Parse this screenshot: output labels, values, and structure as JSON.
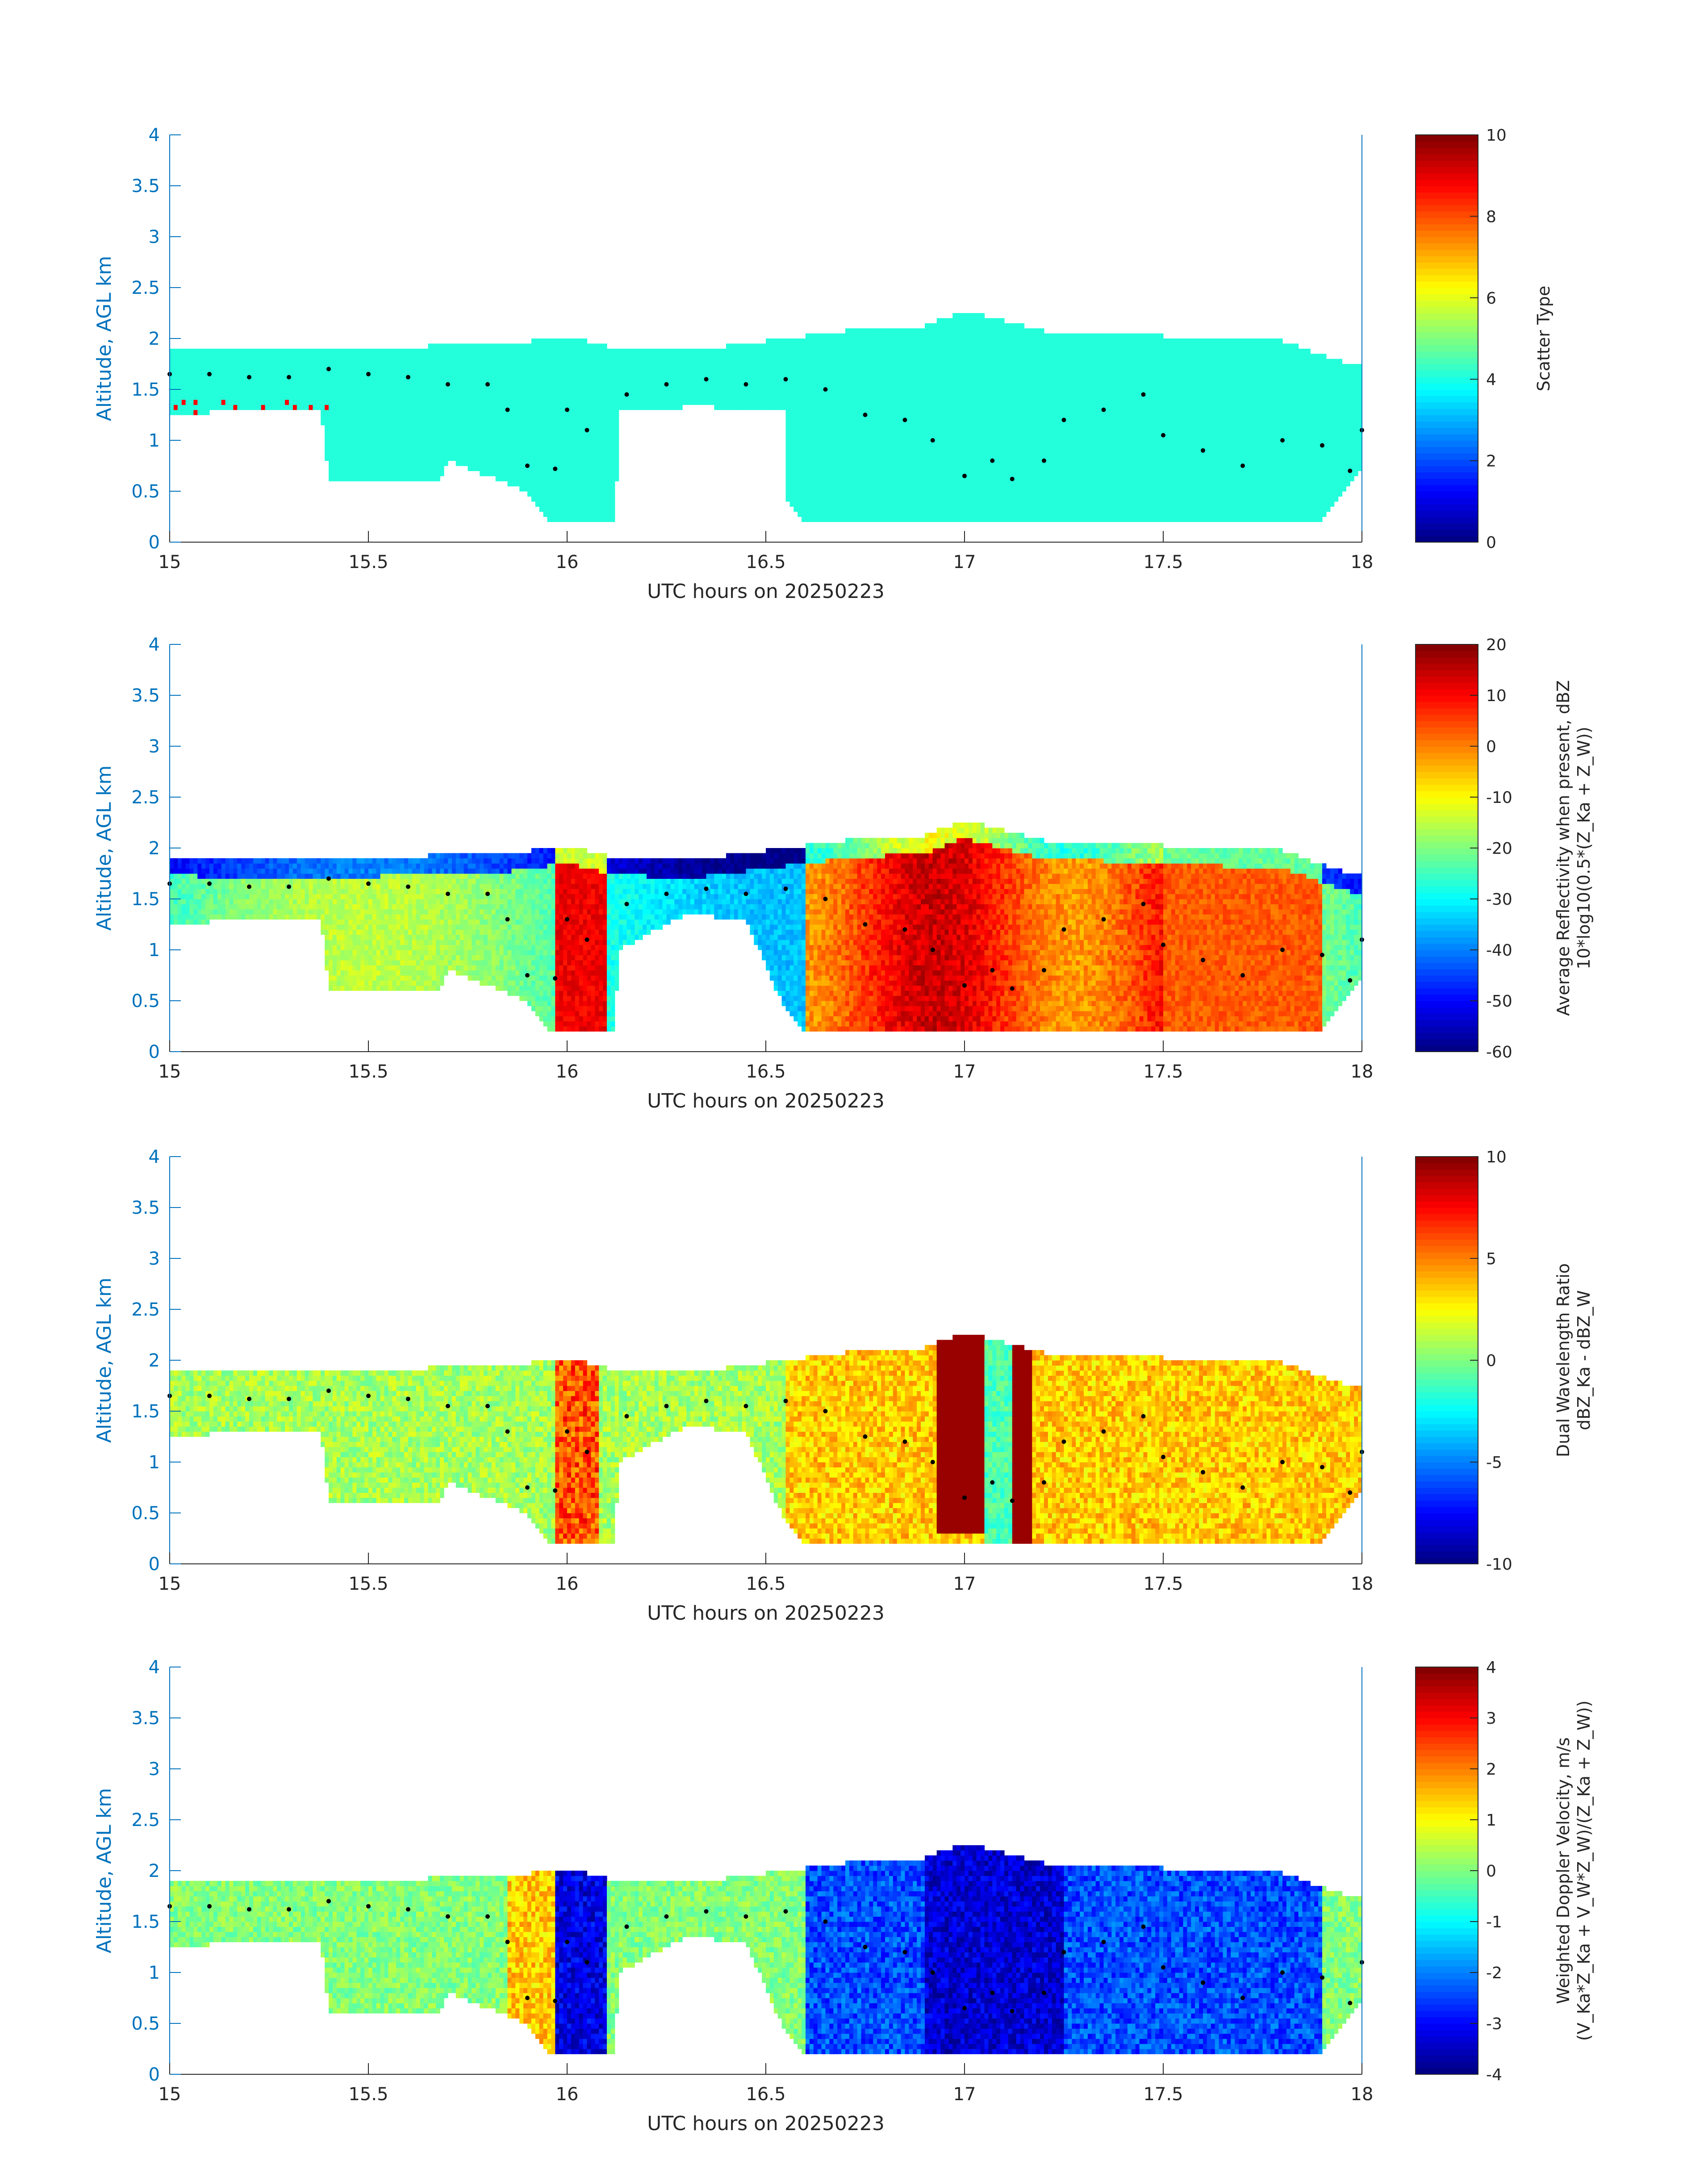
{
  "chart_data": [
    {
      "type": "heatmap",
      "xlabel": "UTC hours on 20250223",
      "ylabel": "Altitude, AGL km",
      "xlim": [
        15,
        18
      ],
      "ylim": [
        0,
        4
      ],
      "xticks": [
        15,
        15.5,
        16,
        16.5,
        17,
        17.5,
        18
      ],
      "xtick_labels": [
        "15",
        "15.5",
        "16",
        "16.5",
        "17",
        "17.5",
        "18"
      ],
      "yticks": [
        0,
        0.5,
        1,
        1.5,
        2,
        2.5,
        3,
        3.5,
        4
      ],
      "ytick_labels": [
        "0",
        "0.5",
        "1",
        "1.5",
        "2",
        "2.5",
        "3",
        "3.5",
        "4"
      ],
      "colorbar": {
        "label_lines": [
          "Scatter Type"
        ],
        "range": [
          0,
          10
        ],
        "ticks": [
          0,
          2,
          4,
          6,
          8,
          10
        ],
        "tick_labels": [
          "0",
          "2",
          "4",
          "6",
          "8",
          "10"
        ],
        "colormap": "jet"
      }
    },
    {
      "type": "heatmap",
      "xlabel": "UTC hours on 20250223",
      "ylabel": "Altitude, AGL km",
      "xlim": [
        15,
        18
      ],
      "ylim": [
        0,
        4
      ],
      "xticks": [
        15,
        15.5,
        16,
        16.5,
        17,
        17.5,
        18
      ],
      "xtick_labels": [
        "15",
        "15.5",
        "16",
        "16.5",
        "17",
        "17.5",
        "18"
      ],
      "yticks": [
        0,
        0.5,
        1,
        1.5,
        2,
        2.5,
        3,
        3.5,
        4
      ],
      "ytick_labels": [
        "0",
        "0.5",
        "1",
        "1.5",
        "2",
        "2.5",
        "3",
        "3.5",
        "4"
      ],
      "colorbar": {
        "label_lines": [
          "Average Reflectivity when present, dBZ",
          "10*log10(0.5*(Z_Ka + Z_W))"
        ],
        "range": [
          -60,
          20
        ],
        "ticks": [
          -60,
          -50,
          -40,
          -30,
          -20,
          -10,
          0,
          10,
          20
        ],
        "tick_labels": [
          "-60",
          "-50",
          "-40",
          "-30",
          "-20",
          "-10",
          "0",
          "10",
          "20"
        ],
        "colormap": "jet"
      }
    },
    {
      "type": "heatmap",
      "xlabel": "UTC hours on 20250223",
      "ylabel": "Altitude, AGL km",
      "xlim": [
        15,
        18
      ],
      "ylim": [
        0,
        4
      ],
      "xticks": [
        15,
        15.5,
        16,
        16.5,
        17,
        17.5,
        18
      ],
      "xtick_labels": [
        "15",
        "15.5",
        "16",
        "16.5",
        "17",
        "17.5",
        "18"
      ],
      "yticks": [
        0,
        0.5,
        1,
        1.5,
        2,
        2.5,
        3,
        3.5,
        4
      ],
      "ytick_labels": [
        "0",
        "0.5",
        "1",
        "1.5",
        "2",
        "2.5",
        "3",
        "3.5",
        "4"
      ],
      "colorbar": {
        "label_lines": [
          "Dual Wavelength Ratio",
          "dBZ_Ka - dBZ_W"
        ],
        "range": [
          -10,
          10
        ],
        "ticks": [
          -10,
          -5,
          0,
          5,
          10
        ],
        "tick_labels": [
          "-10",
          "-5",
          "0",
          "5",
          "10"
        ],
        "colormap": "jet"
      }
    },
    {
      "type": "heatmap",
      "xlabel": "UTC hours on 20250223",
      "ylabel": "Altitude, AGL km",
      "xlim": [
        15,
        18
      ],
      "ylim": [
        0,
        4
      ],
      "xticks": [
        15,
        15.5,
        16,
        16.5,
        17,
        17.5,
        18
      ],
      "xtick_labels": [
        "15",
        "15.5",
        "16",
        "16.5",
        "17",
        "17.5",
        "18"
      ],
      "yticks": [
        0,
        0.5,
        1,
        1.5,
        2,
        2.5,
        3,
        3.5,
        4
      ],
      "ytick_labels": [
        "0",
        "0.5",
        "1",
        "1.5",
        "2",
        "2.5",
        "3",
        "3.5",
        "4"
      ],
      "colorbar": {
        "label_lines": [
          "Weighted Doppler Velocity, m/s",
          "(V_Ka*Z_Ka + V_W*Z_W)/(Z_Ka + Z_W))"
        ],
        "range": [
          -4,
          4
        ],
        "ticks": [
          -4,
          -3,
          -2,
          -1,
          0,
          1,
          2,
          3,
          4
        ],
        "tick_labels": [
          "-4",
          "-3",
          "-2",
          "-1",
          "0",
          "1",
          "2",
          "3",
          "4"
        ],
        "colormap": "jet"
      }
    }
  ],
  "shared": {
    "cloud_top_km": [
      [
        15.0,
        1.88
      ],
      [
        15.4,
        1.85
      ],
      [
        15.65,
        1.9
      ],
      [
        15.85,
        1.92
      ],
      [
        16.0,
        2.0
      ],
      [
        16.1,
        1.9
      ],
      [
        16.3,
        1.85
      ],
      [
        16.5,
        1.95
      ],
      [
        16.7,
        2.05
      ],
      [
        16.9,
        2.1
      ],
      [
        17.0,
        2.25
      ],
      [
        17.2,
        2.05
      ],
      [
        17.5,
        2.0
      ],
      [
        17.8,
        1.95
      ],
      [
        17.95,
        1.75
      ],
      [
        18.0,
        1.7
      ]
    ],
    "cloud_base_km": [
      [
        15.0,
        1.25
      ],
      [
        15.2,
        1.3
      ],
      [
        15.38,
        1.3
      ],
      [
        15.4,
        0.6
      ],
      [
        15.68,
        0.6
      ],
      [
        15.7,
        0.8
      ],
      [
        15.9,
        0.5
      ],
      [
        15.95,
        0.2
      ],
      [
        16.12,
        0.2
      ],
      [
        16.13,
        1.0
      ],
      [
        16.3,
        1.35
      ],
      [
        16.45,
        1.3
      ],
      [
        16.55,
        0.4
      ],
      [
        16.6,
        0.2
      ],
      [
        17.9,
        0.2
      ],
      [
        17.95,
        0.5
      ],
      [
        18.0,
        0.7
      ]
    ],
    "gap_intervals_hours": [
      [
        16.13,
        16.55
      ]
    ],
    "layer_marker_dots_km": [
      [
        15.0,
        1.65
      ],
      [
        15.1,
        1.65
      ],
      [
        15.2,
        1.62
      ],
      [
        15.3,
        1.62
      ],
      [
        15.4,
        1.7
      ],
      [
        15.5,
        1.65
      ],
      [
        15.6,
        1.62
      ],
      [
        15.7,
        1.55
      ],
      [
        15.8,
        1.55
      ],
      [
        15.85,
        1.3
      ],
      [
        15.9,
        0.75
      ],
      [
        15.97,
        0.72
      ],
      [
        16.0,
        1.3
      ],
      [
        16.05,
        1.1
      ],
      [
        16.15,
        1.45
      ],
      [
        16.25,
        1.55
      ],
      [
        16.35,
        1.6
      ],
      [
        16.45,
        1.55
      ],
      [
        16.55,
        1.6
      ],
      [
        16.65,
        1.5
      ],
      [
        16.75,
        1.25
      ],
      [
        16.85,
        1.2
      ],
      [
        16.92,
        1.0
      ],
      [
        17.0,
        0.65
      ],
      [
        17.07,
        0.8
      ],
      [
        17.12,
        0.62
      ],
      [
        17.2,
        0.8
      ],
      [
        17.25,
        1.2
      ],
      [
        17.35,
        1.3
      ],
      [
        17.45,
        1.45
      ],
      [
        17.5,
        1.05
      ],
      [
        17.6,
        0.9
      ],
      [
        17.7,
        0.75
      ],
      [
        17.8,
        1.0
      ],
      [
        17.9,
        0.95
      ],
      [
        17.97,
        0.7
      ],
      [
        18.0,
        1.1
      ]
    ]
  }
}
